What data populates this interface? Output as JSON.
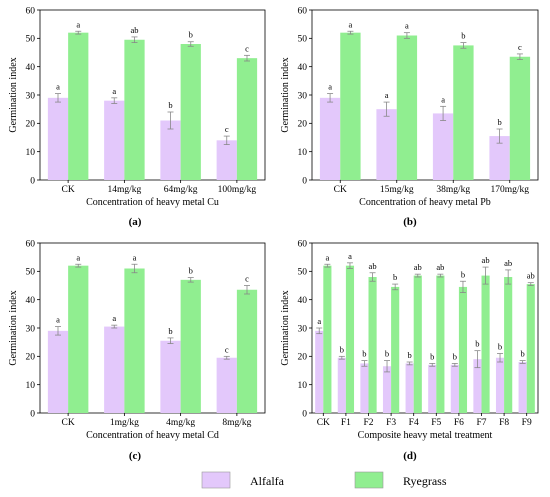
{
  "colors": {
    "alfalfa": "#e3c8fb",
    "ryegrass": "#90ee90",
    "error_bar": "#888888"
  },
  "legend": {
    "items": [
      {
        "label": "Alfalfa"
      },
      {
        "label": "Ryegrass"
      }
    ]
  },
  "chart_data": [
    {
      "type": "bar",
      "panel": "(a)",
      "xlabel": "Concentration of heavy metal Cu",
      "ylabel": "Germination index",
      "ylim": [
        0,
        60
      ],
      "yticks": [
        0,
        10,
        20,
        30,
        40,
        50,
        60
      ],
      "categories": [
        "CK",
        "14mg/kg",
        "64mg/kg",
        "100mg/kg"
      ],
      "series": [
        {
          "name": "Alfalfa",
          "values": [
            29,
            28,
            21,
            14
          ],
          "errors": [
            1.5,
            1,
            3,
            1.5
          ],
          "letters": [
            "a",
            "a",
            "b",
            "c"
          ]
        },
        {
          "name": "Ryegrass",
          "values": [
            52,
            49.5,
            48,
            43
          ],
          "errors": [
            0.5,
            1,
            0.8,
            1
          ],
          "letters": [
            "a",
            "ab",
            "b",
            "c"
          ]
        }
      ]
    },
    {
      "type": "bar",
      "panel": "(b)",
      "xlabel": "Concentration of heavy metal Pb",
      "ylabel": "Germination index",
      "ylim": [
        0,
        60
      ],
      "yticks": [
        0,
        10,
        20,
        30,
        40,
        50,
        60
      ],
      "categories": [
        "CK",
        "15mg/kg",
        "38mg/kg",
        "170mg/kg"
      ],
      "series": [
        {
          "name": "Alfalfa",
          "values": [
            29,
            25,
            23.5,
            15.5
          ],
          "errors": [
            1.5,
            2.5,
            2.5,
            2.5
          ],
          "letters": [
            "a",
            "a",
            "a",
            "b"
          ]
        },
        {
          "name": "Ryegrass",
          "values": [
            52,
            51,
            47.5,
            43.5
          ],
          "errors": [
            0.5,
            1,
            1,
            1
          ],
          "letters": [
            "a",
            "a",
            "b",
            "c"
          ]
        }
      ]
    },
    {
      "type": "bar",
      "panel": "(c)",
      "xlabel": "Concentration of heavy metal Cd",
      "ylabel": "Germination index",
      "ylim": [
        0,
        60
      ],
      "yticks": [
        0,
        10,
        20,
        30,
        40,
        50,
        60
      ],
      "categories": [
        "CK",
        "1mg/kg",
        "4mg/kg",
        "8mg/kg"
      ],
      "series": [
        {
          "name": "Alfalfa",
          "values": [
            29,
            30.5,
            25.5,
            19.5
          ],
          "errors": [
            1.5,
            0.5,
            1,
            0.5
          ],
          "letters": [
            "a",
            "a",
            "b",
            "c"
          ]
        },
        {
          "name": "Ryegrass",
          "values": [
            52,
            51,
            47,
            43.5
          ],
          "errors": [
            0.5,
            1.5,
            0.8,
            1.5
          ],
          "letters": [
            "a",
            "a",
            "b",
            "c"
          ]
        }
      ]
    },
    {
      "type": "bar",
      "panel": "(d)",
      "xlabel": "Composite heavy metal treatment",
      "ylabel": "Germination index",
      "ylim": [
        0,
        60
      ],
      "yticks": [
        0,
        10,
        20,
        30,
        40,
        50,
        60
      ],
      "categories": [
        "CK",
        "F1",
        "F2",
        "F3",
        "F4",
        "F5",
        "F6",
        "F7",
        "F8",
        "F9"
      ],
      "series": [
        {
          "name": "Alfalfa",
          "values": [
            29,
            19.5,
            17.5,
            16.5,
            17.5,
            17,
            17,
            19,
            19.5,
            18
          ],
          "errors": [
            1,
            0.5,
            1,
            2,
            0.5,
            0.5,
            0.5,
            3,
            1.5,
            0.5
          ],
          "letters": [
            "a",
            "b",
            "b",
            "b",
            "b",
            "b",
            "b",
            "b",
            "b",
            "b"
          ]
        },
        {
          "name": "Ryegrass",
          "values": [
            52,
            52,
            48,
            44.5,
            48.5,
            48.5,
            44.5,
            48.5,
            48,
            45.5
          ],
          "errors": [
            0.5,
            1,
            1.5,
            1,
            0.5,
            0.5,
            2,
            3,
            2.5,
            0.5
          ],
          "letters": [
            "a",
            "a",
            "ab",
            "b",
            "ab",
            "ab",
            "b",
            "ab",
            "ab",
            "ab"
          ]
        }
      ]
    }
  ]
}
